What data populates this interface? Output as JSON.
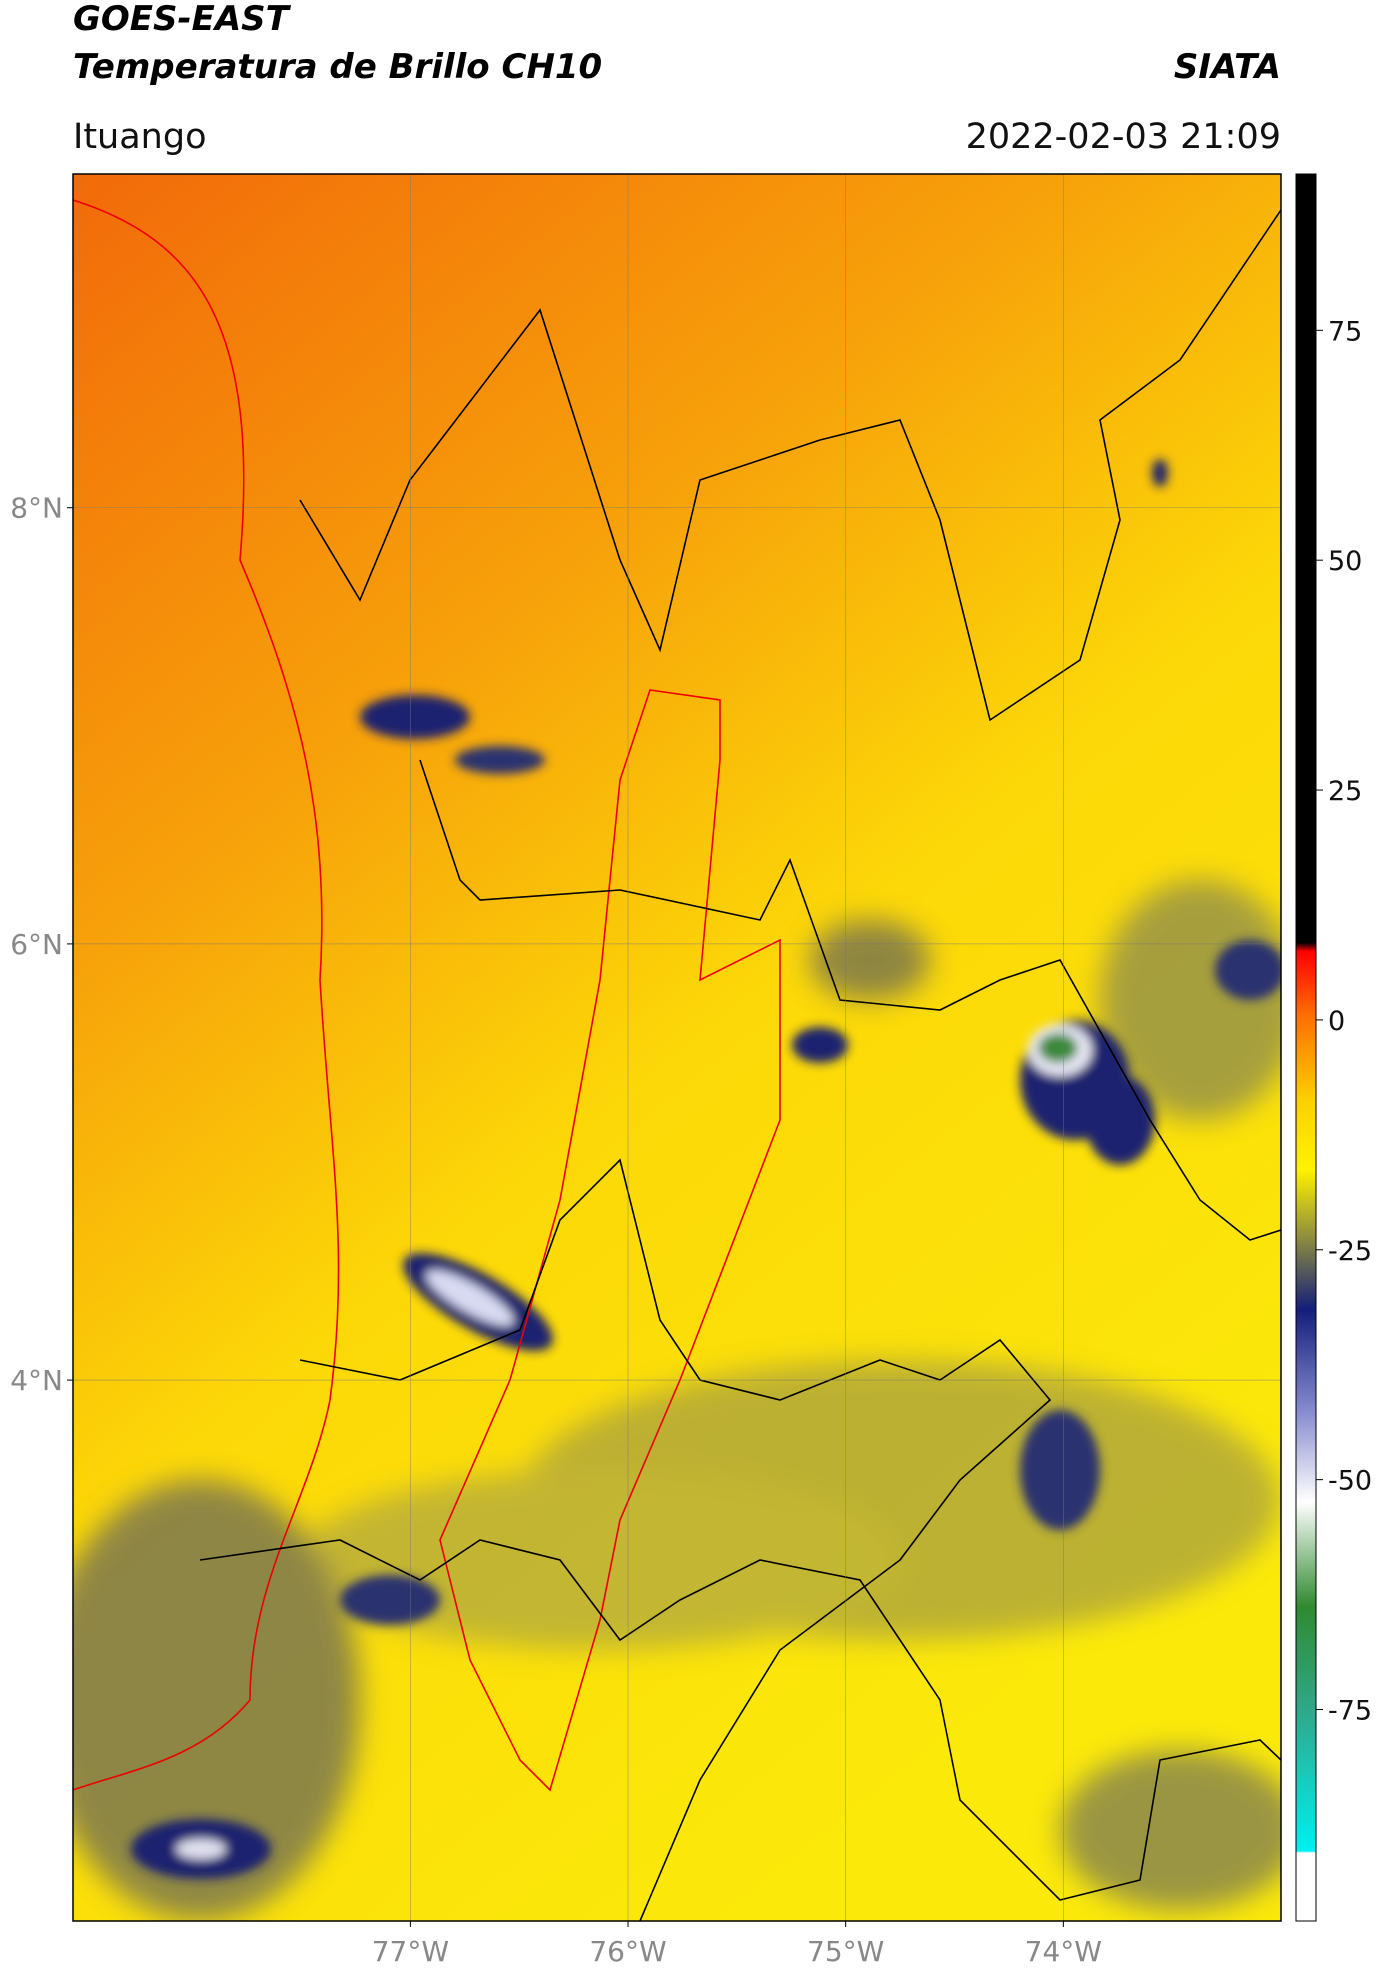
{
  "header": {
    "title": "GOES-EAST",
    "subtitle": "Temperatura de Brillo CH10",
    "source": "SIATA",
    "location": "Ituango",
    "datetime": "2022-02-03 21:09"
  },
  "map": {
    "lon_range": [
      -78.55,
      -73.0
    ],
    "lat_range": [
      1.52,
      9.53
    ],
    "lon_ticks": [
      {
        "value": -77,
        "label": "77°W"
      },
      {
        "value": -76,
        "label": "76°W"
      },
      {
        "value": -75,
        "label": "75°W"
      },
      {
        "value": -74,
        "label": "74°W"
      }
    ],
    "lat_ticks": [
      {
        "value": 8,
        "label": "8°N"
      },
      {
        "value": 6,
        "label": "6°N"
      },
      {
        "value": 4,
        "label": "4°N"
      }
    ],
    "grid": true
  },
  "colorbar": {
    "range": [
      -98,
      92
    ],
    "ticks": [
      75,
      50,
      25,
      0,
      -25,
      -50,
      -75
    ]
  }
}
